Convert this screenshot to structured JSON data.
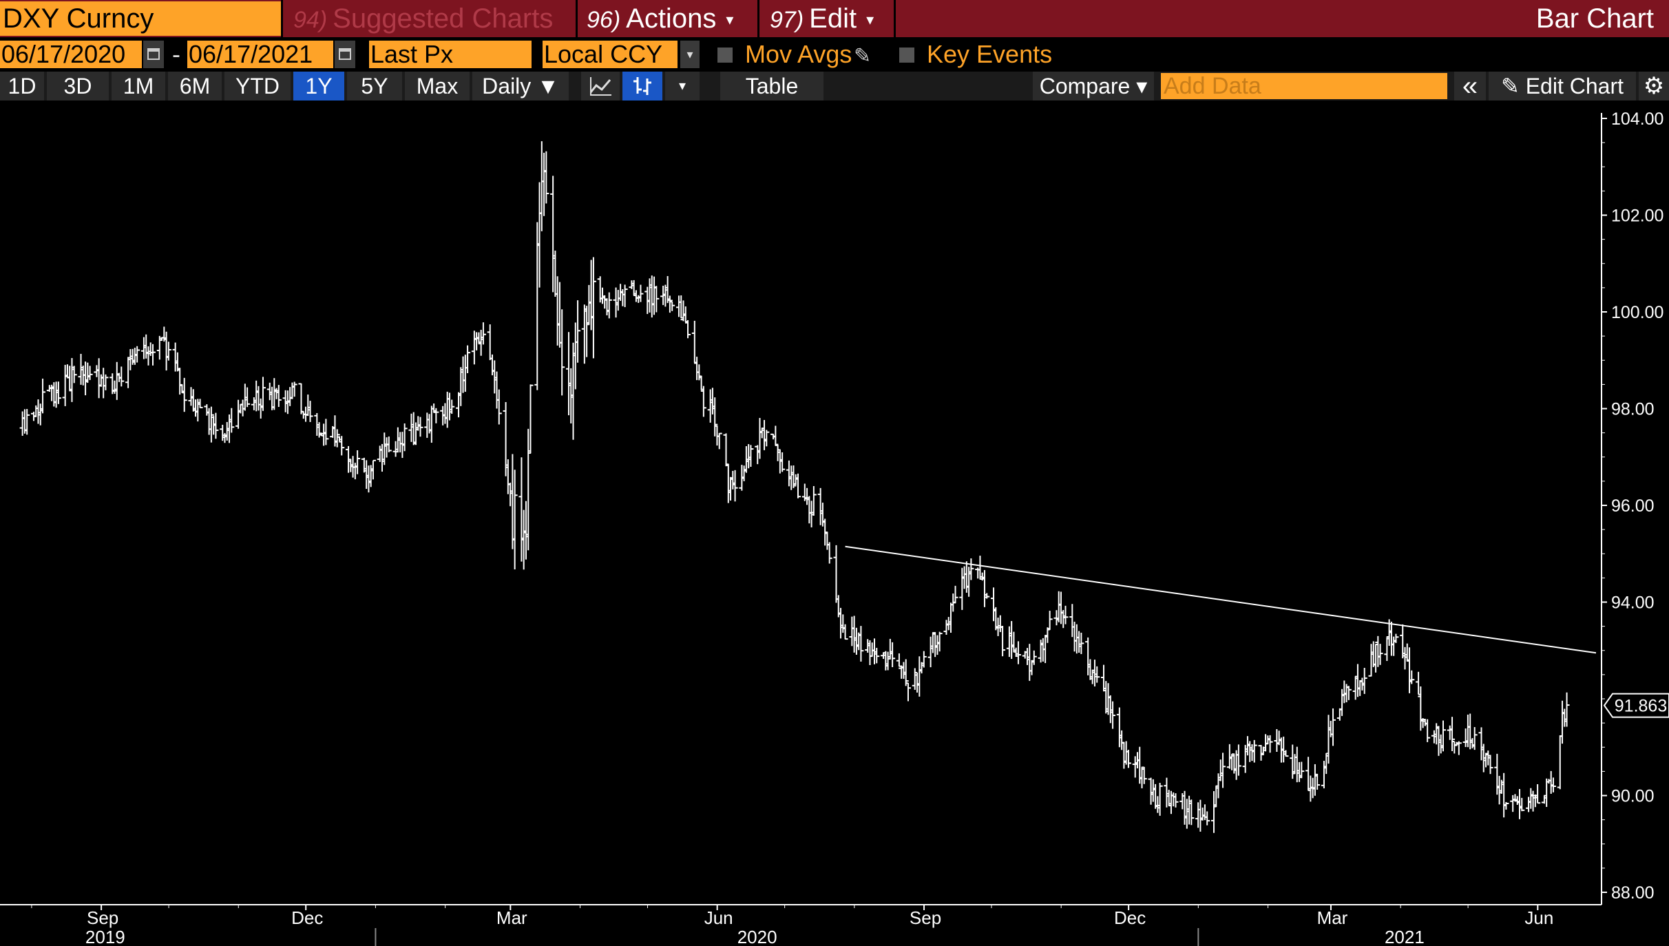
{
  "header": {
    "ticker": "DXY Curncy",
    "suggested_num": "94)",
    "suggested_label": "Suggested Charts",
    "actions_num": "96)",
    "actions_label": "Actions",
    "edit_num": "97)",
    "edit_label": "Edit",
    "title": "Bar Chart",
    "caret": "▾"
  },
  "range": {
    "start_date": "06/17/2020",
    "end_date": "06/17/2021",
    "separator": "-",
    "field": "Last Px",
    "currency": "Local CCY",
    "mov_avgs": "Mov Avgs",
    "key_events": "Key Events"
  },
  "toolbar": {
    "periods": [
      "1D",
      "3D",
      "1M",
      "6M",
      "YTD",
      "1Y",
      "5Y",
      "Max"
    ],
    "selected_period": "1Y",
    "frequency": "Daily ▼",
    "table": "Table",
    "compare": "Compare ▾",
    "add_data_placeholder": "Add Data",
    "collapse": "«",
    "edit_chart": "Edit Chart"
  },
  "icons": {
    "calendar": "calendar-icon",
    "line_chart": "line-chart-icon",
    "bar_chart": "ohlc-bar-icon",
    "pencil": "pencil-icon",
    "settings": "gear-icon"
  },
  "colors": {
    "title_bar": "#7d1420",
    "input_orange": "#fea328",
    "selected_blue": "#1a57c6",
    "bars": "#ffffff",
    "background": "#000000"
  },
  "chart_data": {
    "type": "ohlc-bar",
    "y_ticks": [
      "104.00",
      "102.00",
      "100.00",
      "98.00",
      "96.00",
      "94.00",
      "90.00",
      "88.00"
    ],
    "ylim": [
      88,
      104
    ],
    "x_months": [
      "Sep",
      "Dec",
      "Mar",
      "Jun",
      "Sep",
      "Dec",
      "Mar",
      "Jun"
    ],
    "x_years": [
      "2019",
      "2020",
      "2021"
    ],
    "last_price": "91.863",
    "anchors": [
      [
        "2019-07-31",
        97.6
      ],
      [
        "2019-08-12",
        98.3
      ],
      [
        "2019-08-26",
        98.7
      ],
      [
        "2019-09-09",
        98.5
      ],
      [
        "2019-09-23",
        99.1
      ],
      [
        "2019-10-01",
        99.3
      ],
      [
        "2019-10-14",
        98.2
      ],
      [
        "2019-10-28",
        97.5
      ],
      [
        "2019-11-11",
        98.2
      ],
      [
        "2019-11-28",
        98.3
      ],
      [
        "2019-12-09",
        97.7
      ],
      [
        "2019-12-18",
        97.4
      ],
      [
        "2019-12-31",
        96.6
      ],
      [
        "2020-01-08",
        97.2
      ],
      [
        "2020-01-20",
        97.5
      ],
      [
        "2020-02-05",
        98.0
      ],
      [
        "2020-02-20",
        99.6
      ],
      [
        "2020-03-09",
        95.2
      ],
      [
        "2020-03-19",
        102.8
      ],
      [
        "2020-03-27",
        98.5
      ],
      [
        "2020-04-08",
        100.1
      ],
      [
        "2020-04-24",
        100.4
      ],
      [
        "2020-05-15",
        100.3
      ],
      [
        "2020-06-01",
        98.0
      ],
      [
        "2020-06-10",
        96.4
      ],
      [
        "2020-06-24",
        97.4
      ],
      [
        "2020-07-17",
        96.0
      ],
      [
        "2020-07-31",
        93.4
      ],
      [
        "2020-08-14",
        93.0
      ],
      [
        "2020-08-31",
        92.3
      ],
      [
        "2020-09-10",
        93.3
      ],
      [
        "2020-09-25",
        94.6
      ],
      [
        "2020-10-12",
        93.1
      ],
      [
        "2020-10-21",
        92.8
      ],
      [
        "2020-11-04",
        93.9
      ],
      [
        "2020-11-20",
        92.3
      ],
      [
        "2020-12-04",
        90.8
      ],
      [
        "2020-12-17",
        90.0
      ],
      [
        "2021-01-06",
        89.6
      ],
      [
        "2021-01-18",
        90.7
      ],
      [
        "2021-02-05",
        91.1
      ],
      [
        "2021-02-25",
        90.2
      ],
      [
        "2021-03-08",
        92.0
      ],
      [
        "2021-03-31",
        93.2
      ],
      [
        "2021-04-20",
        91.2
      ],
      [
        "2021-05-05",
        91.2
      ],
      [
        "2021-05-25",
        89.8
      ],
      [
        "2021-06-10",
        90.1
      ],
      [
        "2021-06-17",
        91.86
      ]
    ],
    "trendline": [
      [
        "2020-07-31",
        95.15
      ],
      [
        "2021-06-30",
        92.95
      ]
    ]
  }
}
